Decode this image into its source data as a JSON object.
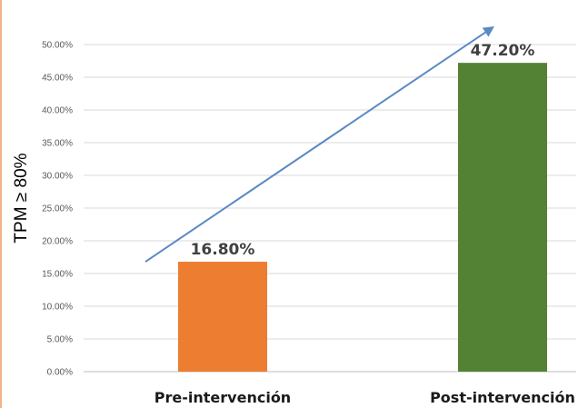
{
  "chart_data": {
    "type": "bar",
    "categories": [
      "Pre-intervención",
      "Post-intervención"
    ],
    "values": [
      16.8,
      47.2
    ],
    "value_labels": [
      "16.80%",
      "47.20%"
    ],
    "bar_colors": [
      "#ed7d31",
      "#548235"
    ],
    "ylabel": "TPM ≥ 80%",
    "ylim": [
      0,
      50
    ],
    "yticks": [
      0,
      5,
      10,
      15,
      20,
      25,
      30,
      35,
      40,
      45,
      50
    ],
    "ytick_labels": [
      "0.00%",
      "5.00%",
      "10.00%",
      "15.00%",
      "20.00%",
      "25.00%",
      "30.00%",
      "35.00%",
      "40.00%",
      "45.00%",
      "50.00%"
    ],
    "grid": true,
    "trend_arrow": {
      "from": 16.8,
      "to": 52.6,
      "color": "#5b8ac3"
    }
  }
}
